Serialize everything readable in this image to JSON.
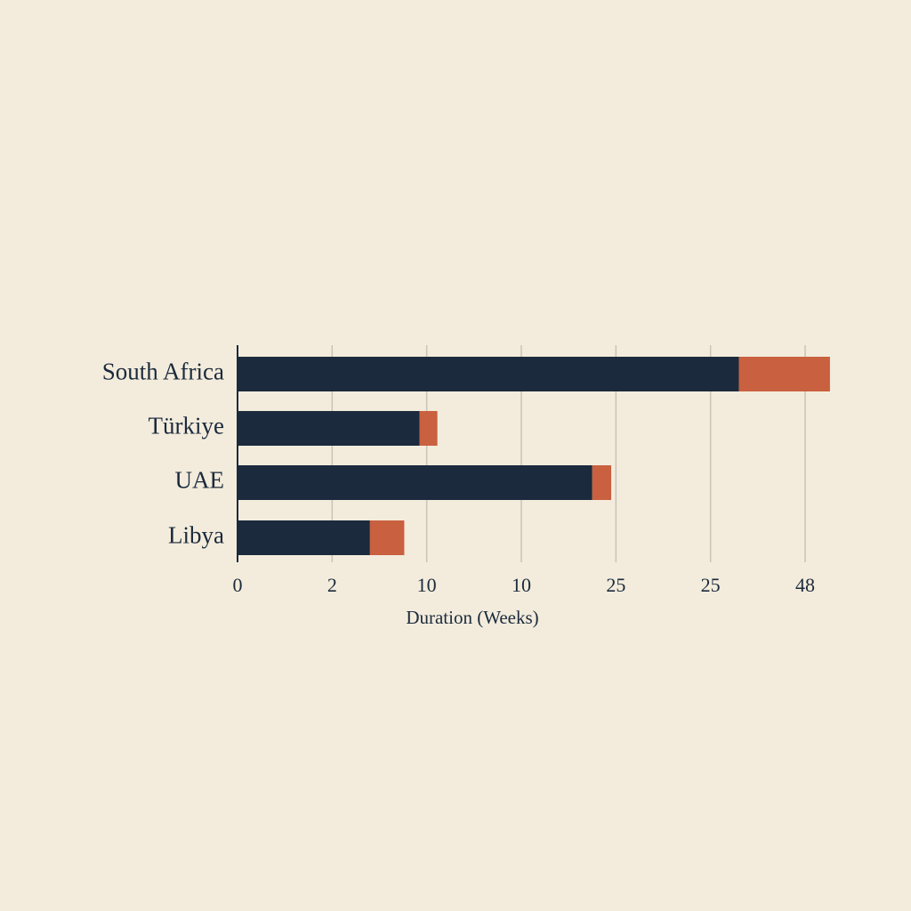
{
  "chart_data": {
    "type": "stacked-barh",
    "x_label": "Duration (Weeks)",
    "categories": [
      "South Africa",
      "Türkiye",
      "UAE",
      "Libya"
    ],
    "series": [
      {
        "color": "#1b2a3d",
        "values": [
          42.4,
          15.4,
          30.0,
          11.2
        ]
      },
      {
        "color": "#c9603f",
        "values": [
          7.7,
          1.5,
          1.6,
          2.9
        ]
      }
    ],
    "xlim": [
      0,
      51
    ],
    "xticks": [
      0,
      {
        "value": 8,
        "label": "2"
      },
      {
        "value": 16,
        "label": "10"
      },
      {
        "value": 24,
        "label": "10"
      },
      {
        "value": 32,
        "label": "25"
      },
      {
        "value": 40,
        "label": "25"
      },
      48
    ],
    "grid": true
  }
}
